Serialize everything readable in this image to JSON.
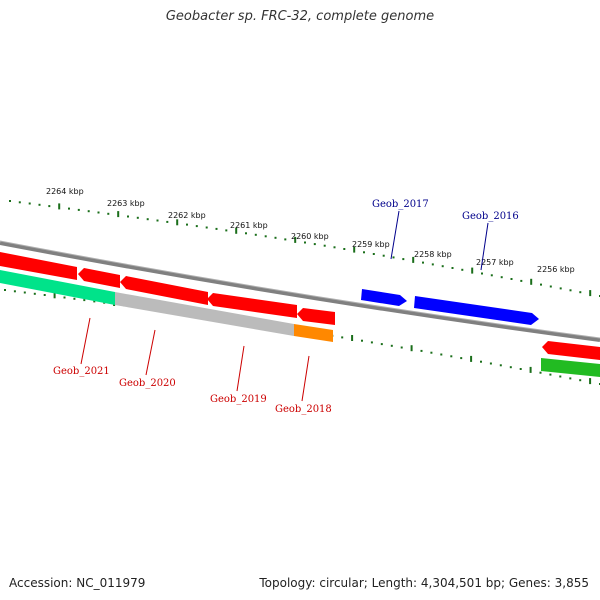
{
  "title": "Geobacter sp. FRC-32, complete genome",
  "footer": {
    "accession": "Accession: NC_011979",
    "summary": "Topology: circular; Length: 4,304,501 bp; Genes: 3,855"
  },
  "colors": {
    "forward_gene": "#0000ff",
    "reverse_gene": "#ff0000",
    "backbone": "#808080",
    "ticks": "#1a6e1a",
    "label_forward": "#00008b",
    "label_reverse": "#cc0000",
    "cog_teal": "#00e38a",
    "cog_gray": "#bbbbbb",
    "cog_orange": "#ff8800",
    "cog_green": "#22bb22"
  },
  "scale": {
    "unit": "kbp",
    "labels": [
      "2264 kbp",
      "2263 kbp",
      "2262 kbp",
      "2261 kbp",
      "2260 kbp",
      "2259 kbp",
      "2258 kbp",
      "2257 kbp",
      "2256 kbp"
    ]
  },
  "genes": [
    {
      "label": "Geob_2017",
      "strand": "forward"
    },
    {
      "label": "Geob_2016",
      "strand": "forward"
    },
    {
      "label": "Geob_2021",
      "strand": "reverse"
    },
    {
      "label": "Geob_2020",
      "strand": "reverse"
    },
    {
      "label": "Geob_2019",
      "strand": "reverse"
    },
    {
      "label": "Geob_2018",
      "strand": "reverse"
    }
  ]
}
